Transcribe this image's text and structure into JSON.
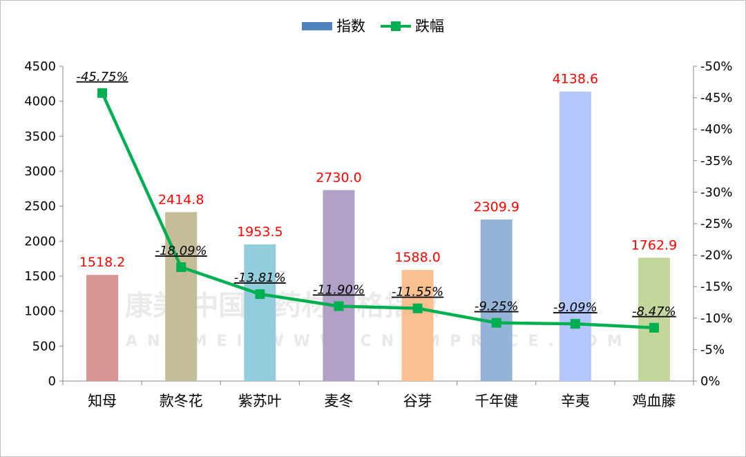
{
  "watermark": {
    "main": "康美·中国中药材价格指数",
    "sub": "KANGMEI WWW.CNKMPRICE.COM"
  },
  "chart_data": {
    "type": "bar",
    "legend": {
      "position": "top",
      "entries": [
        "指数",
        "跌幅"
      ]
    },
    "categories": [
      "知母",
      "款冬花",
      "紫苏叶",
      "麦冬",
      "谷芽",
      "千年健",
      "辛夷",
      "鸡血藤"
    ],
    "series": [
      {
        "name": "指数",
        "type": "bar",
        "axis": "left",
        "legend_color": "#4f81bd",
        "values": [
          1518.2,
          2414.8,
          1953.5,
          2730.0,
          1588.0,
          2309.9,
          4138.6,
          1762.9
        ],
        "labels": [
          "1518.2",
          "2414.8",
          "1953.5",
          "2730.0",
          "1588.0",
          "2309.9",
          "4138.6",
          "1762.9"
        ],
        "colors": [
          "#d99594",
          "#c4bd97",
          "#92cddc",
          "#b2a1c7",
          "#fac08f",
          "#95b3d7",
          "#b4c7fc",
          "#c3d69b"
        ]
      },
      {
        "name": "跌幅",
        "type": "line",
        "axis": "right",
        "color": "#00b050",
        "values": [
          -45.75,
          -18.09,
          -13.81,
          -11.9,
          -11.55,
          -9.25,
          -9.09,
          -8.47
        ],
        "labels": [
          "-45.75%",
          "-18.09%",
          "-13.81%",
          "-11.90%",
          "-11.55%",
          "-9.25%",
          "-9.09%",
          "-8.47%"
        ]
      }
    ],
    "y_left": {
      "min": 0,
      "max": 4500,
      "step": 500,
      "ticks": [
        "0",
        "500",
        "1000",
        "1500",
        "2000",
        "2500",
        "3000",
        "3500",
        "4000",
        "4500"
      ]
    },
    "y_right": {
      "min": 0,
      "max": -50,
      "step": -5,
      "ticks": [
        "0%",
        "-5%",
        "-10%",
        "-15%",
        "-20%",
        "-25%",
        "-30%",
        "-35%",
        "-40%",
        "-45%",
        "-50%"
      ],
      "reversed": true
    },
    "grid": false
  }
}
